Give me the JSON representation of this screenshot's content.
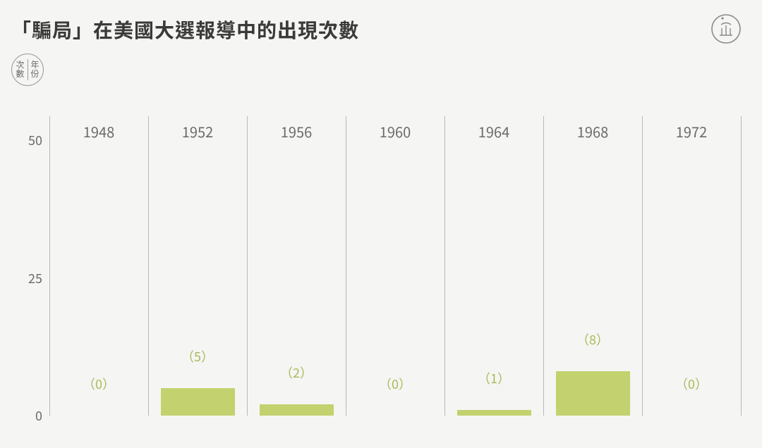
{
  "title": "「騙局」在美國大選報導中的出現次數",
  "legend": {
    "left_top": "次",
    "left_bottom": "數",
    "right_top": "年",
    "right_bottom": "份"
  },
  "chart": {
    "type": "bar",
    "categories": [
      "1948",
      "1952",
      "1956",
      "1960",
      "1964",
      "1968",
      "1972"
    ],
    "values": [
      0,
      5,
      2,
      0,
      1,
      8,
      0
    ],
    "value_labels": [
      "（0）",
      "（5）",
      "（2）",
      "（0）",
      "（1）",
      "（8）",
      "（0）"
    ],
    "ylim": [
      0,
      55
    ],
    "yticks": [
      0,
      25,
      50
    ],
    "bar_color": "#c3d26e",
    "bar_width": 0.75,
    "value_label_color": "#aab95a",
    "category_label_color": "#6a6a6a",
    "ytick_label_color": "#6a6a6a",
    "gridline_color": "#b8b8b8",
    "background_color": "#f5f5f3",
    "title_color": "#3a3a3a",
    "title_fontsize": 28,
    "label_fontsize": 20,
    "value_label_fontsize": 18
  }
}
